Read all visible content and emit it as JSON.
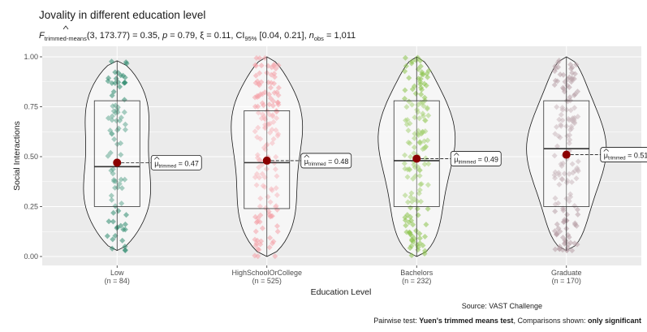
{
  "chart_data": {
    "type": "violin",
    "title": "Jovality in different education level",
    "subtitle": {
      "stat_name": "F",
      "stat_sub": "trimmed-means",
      "stat_args": "(3, 173.77) = 0.35, ",
      "p_label": "p",
      "p_value": " = 0.79, ",
      "es_symbol": "ξ",
      "es_value": " = 0.11, CI",
      "ci_sub": "95%",
      "ci_value": " [0.04, 0.21], ",
      "n_label": "n",
      "n_sub": "obs",
      "n_value": " = 1,011"
    },
    "xlabel": "Education Level",
    "ylabel": "Social Interactions",
    "ylim": [
      0,
      1
    ],
    "yticks": [
      0,
      0.25,
      0.5,
      0.75,
      1
    ],
    "ytick_labels": [
      "0.00",
      "0.25",
      "0.50",
      "0.75",
      "1.00"
    ],
    "grid": true,
    "mu_label_symbol": "μ",
    "mu_label_sub": "trimmed",
    "groups": [
      {
        "name": "Low",
        "n_label": "(n = 84)",
        "n": 84,
        "color": "#2e8b6e",
        "q1": 0.25,
        "median": 0.45,
        "q3": 0.78,
        "mean": 0.47,
        "mean_label": " = 0.47",
        "min": 0.03,
        "max": 0.98
      },
      {
        "name": "HighSchoolOrCollege",
        "n_label": "(n = 525)",
        "n": 525,
        "color": "#f4a0a8",
        "q1": 0.24,
        "median": 0.47,
        "q3": 0.73,
        "mean": 0.48,
        "mean_label": " = 0.48",
        "min": 0.0,
        "max": 1.0
      },
      {
        "name": "Bachelors",
        "n_label": "(n = 232)",
        "n": 232,
        "color": "#8bc34a",
        "q1": 0.25,
        "median": 0.48,
        "q3": 0.78,
        "mean": 0.49,
        "mean_label": " = 0.49",
        "min": 0.0,
        "max": 1.0
      },
      {
        "name": "Graduate",
        "n_label": "(n = 170)",
        "n": 170,
        "color": "#b8a0a8",
        "q1": 0.25,
        "median": 0.54,
        "q3": 0.78,
        "mean": 0.51,
        "mean_label": " = 0.51",
        "min": 0.03,
        "max": 1.0
      }
    ],
    "caption": "Source: VAST Challenge",
    "pairwise_note": {
      "prefix": "Pairwise test: ",
      "test": "Yuen's trimmed means test",
      "middle": ", Comparisons shown: ",
      "shown": "only significant"
    }
  },
  "colors": {
    "panel_bg": "#ebebeb",
    "grid": "#ffffff",
    "mean_point": "#8b0000"
  }
}
